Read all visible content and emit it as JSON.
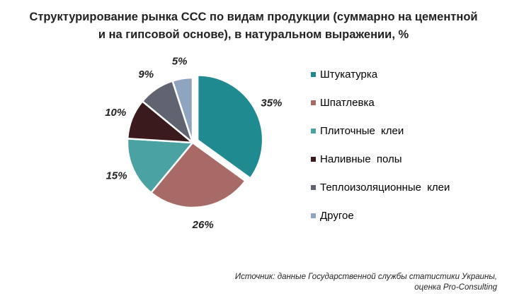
{
  "chart_data": {
    "type": "pie",
    "title_line1": "Структурирование рынка ССС по видам продукции (суммарно на цементной",
    "title_line2": "и на гипсовой основе), в натуральном выражении, %",
    "slices": [
      {
        "label": "Штукатурка",
        "value": 35,
        "value_label": "35%",
        "color": "#1f8a8f",
        "exploded": true
      },
      {
        "label": "Шпатлевка",
        "value": 26,
        "value_label": "26%",
        "color": "#a86a66"
      },
      {
        "label": "Плиточные  клеи",
        "value": 15,
        "value_label": "15%",
        "color": "#4aa3a2"
      },
      {
        "label": "Наливные  полы",
        "value": 10,
        "value_label": "10%",
        "color": "#3b1a1d"
      },
      {
        "label": "Теплоизоляционные  клеи",
        "value": 9,
        "value_label": "9%",
        "color": "#5f6470"
      },
      {
        "label": "Другое",
        "value": 5,
        "value_label": "5%",
        "color": "#8fa4bf"
      }
    ],
    "legend_position": "right",
    "source_line1": "Источник: данные Государственной службы статистики Украины,",
    "source_line2": "оценка Pro-Consulting"
  }
}
